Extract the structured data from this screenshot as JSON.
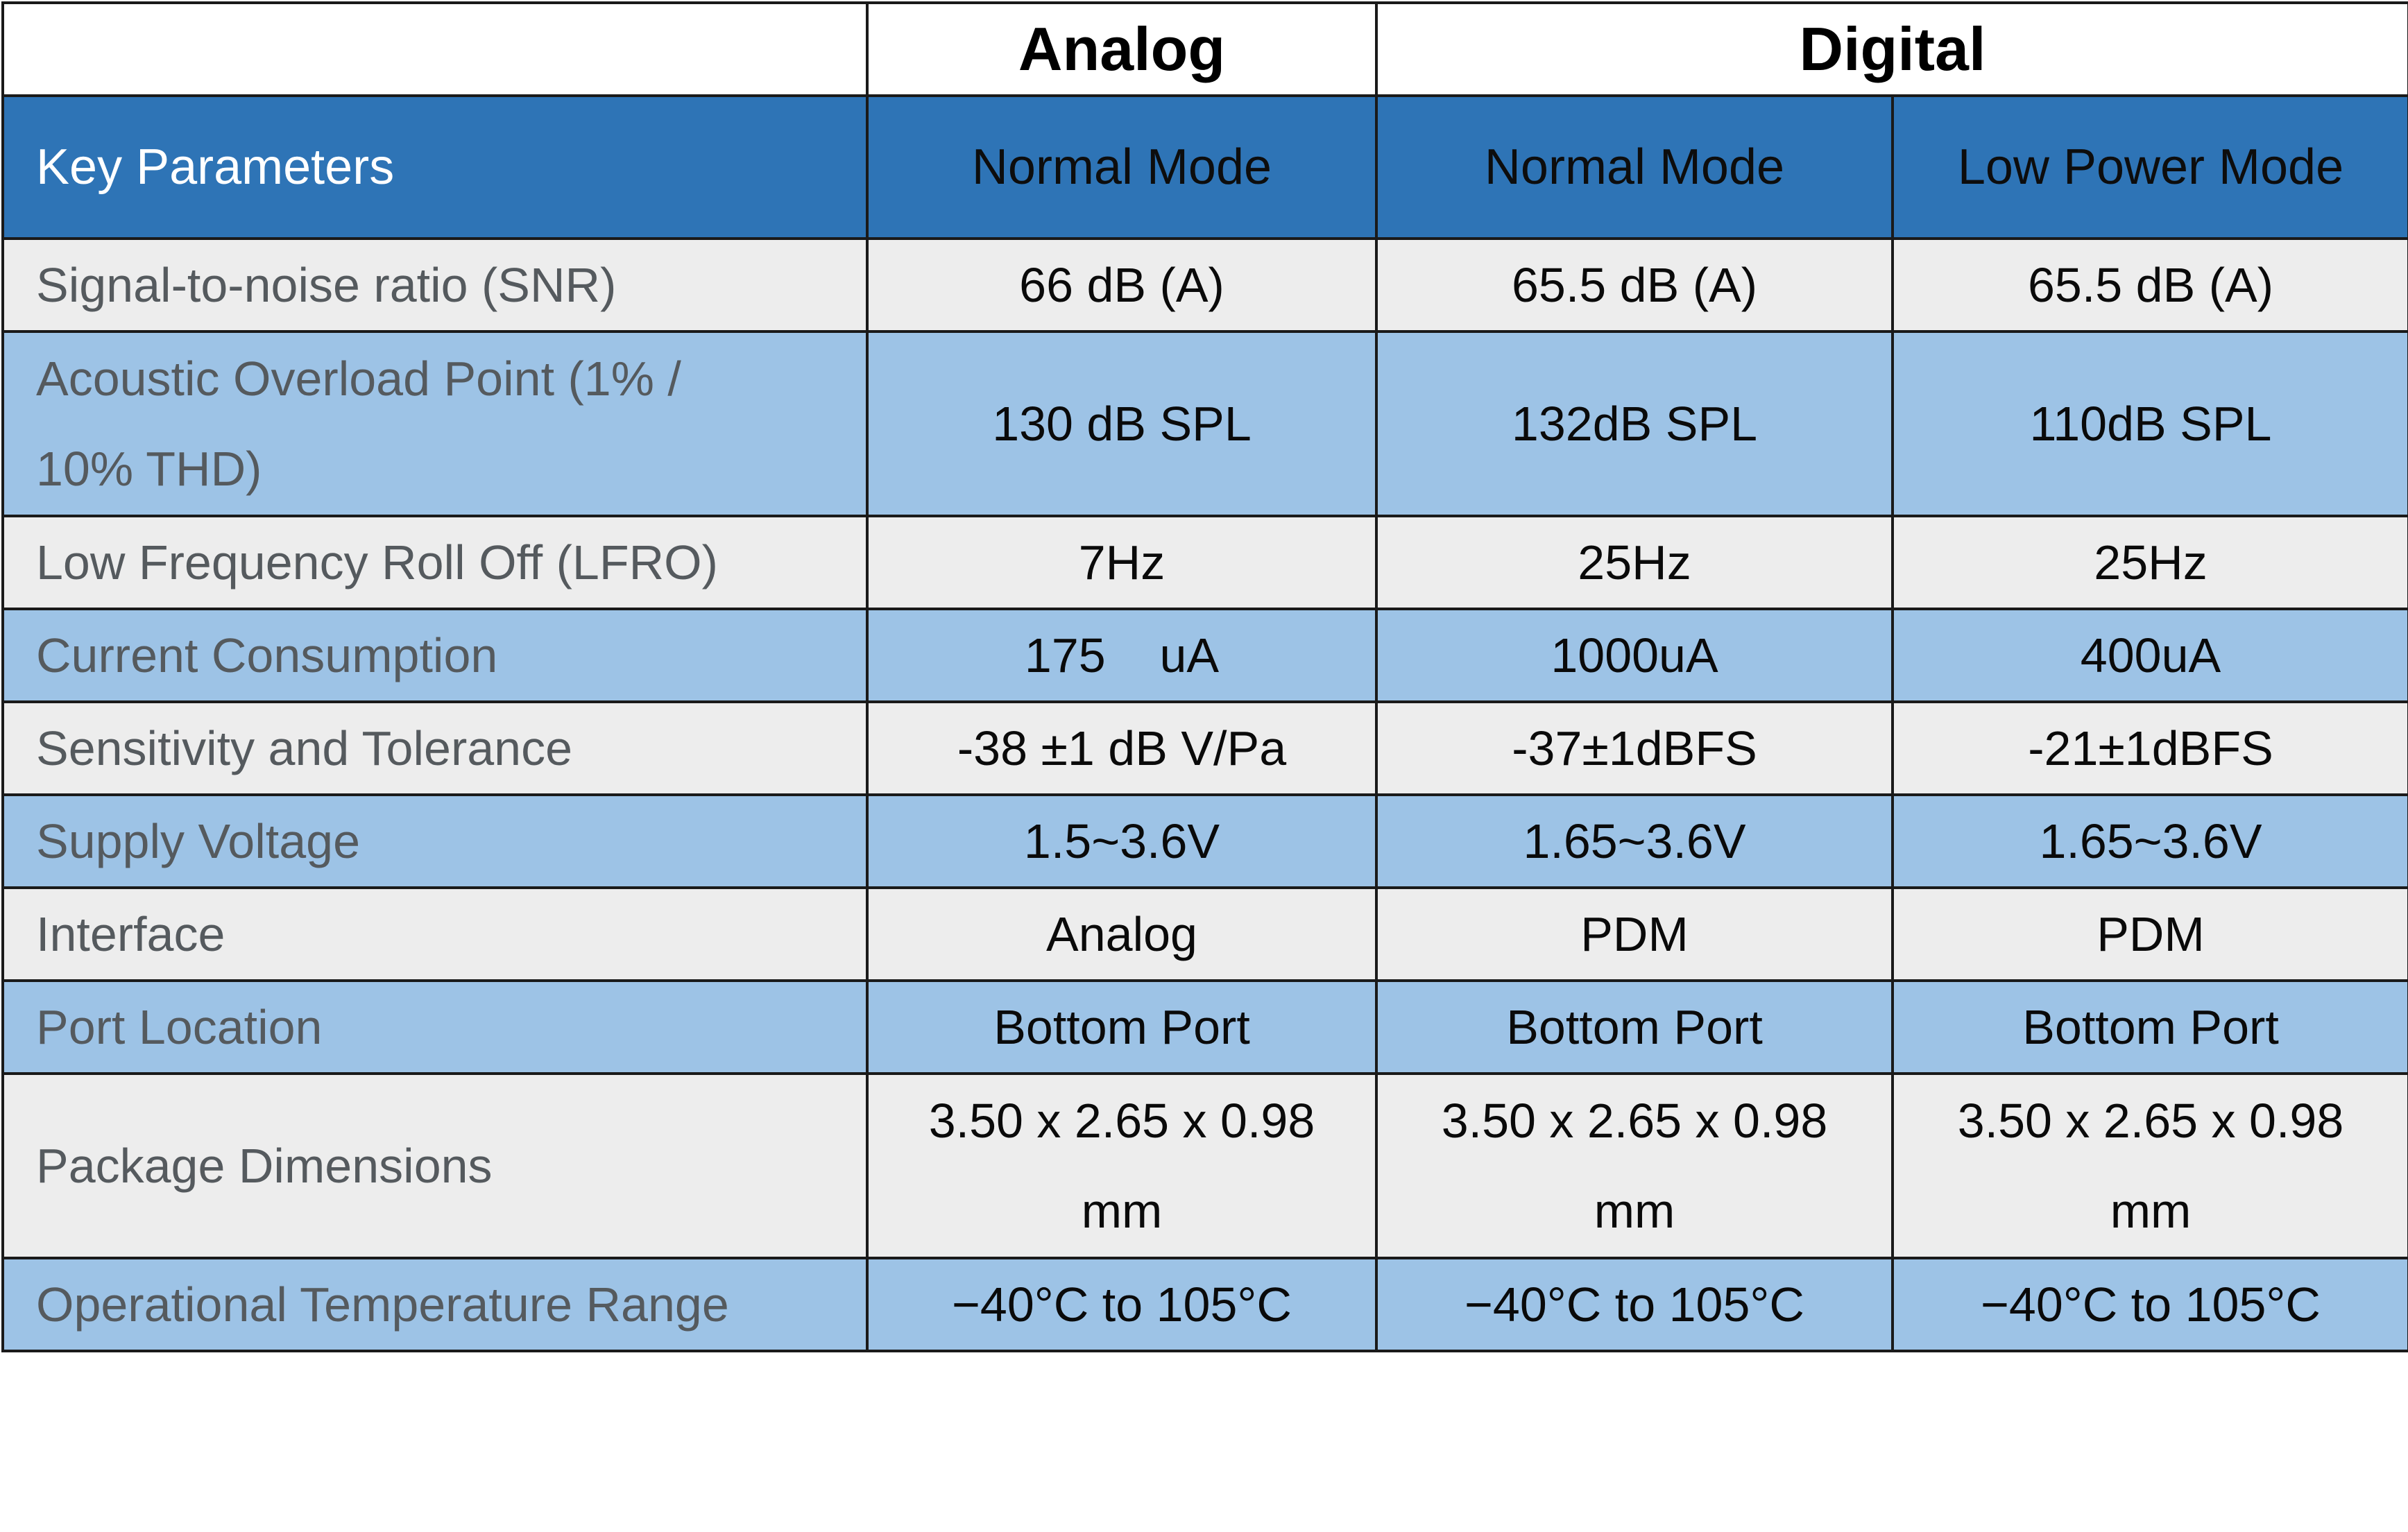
{
  "group_header": {
    "blank": "",
    "analog": "Analog",
    "digital": "Digital"
  },
  "column_header": {
    "key_parameters": "Key Parameters",
    "analog_normal": "Normal Mode",
    "digital_normal": "Normal Mode",
    "digital_low_power": "Low Power Mode"
  },
  "rows": [
    {
      "label": "Signal-to-noise ratio (SNR)",
      "analog_normal": "66 dB (A)",
      "digital_normal": "65.5 dB (A)",
      "digital_low_power": "65.5 dB (A)"
    },
    {
      "label": "Acoustic Overload Point (1% / 10% THD)",
      "analog_normal": "130 dB SPL",
      "digital_normal": "132dB SPL",
      "digital_low_power": "110dB SPL"
    },
    {
      "label": "Low Frequency Roll Off (LFRO)",
      "analog_normal": "7Hz",
      "digital_normal": "25Hz",
      "digital_low_power": "25Hz"
    },
    {
      "label": "Current Consumption",
      "analog_normal": "175    uA",
      "digital_normal": "1000uA",
      "digital_low_power": "400uA"
    },
    {
      "label": "Sensitivity and Tolerance",
      "analog_normal": "-38 ±1 dB V/Pa",
      "digital_normal": "-37±1dBFS",
      "digital_low_power": "-21±1dBFS"
    },
    {
      "label": "Supply Voltage",
      "analog_normal": "1.5~3.6V",
      "digital_normal": "1.65~3.6V",
      "digital_low_power": "1.65~3.6V"
    },
    {
      "label": "Interface",
      "analog_normal": "Analog",
      "digital_normal": "PDM",
      "digital_low_power": "PDM"
    },
    {
      "label": "Port Location",
      "analog_normal": "Bottom Port",
      "digital_normal": "Bottom Port",
      "digital_low_power": "Bottom Port"
    },
    {
      "label": "Package Dimensions",
      "analog_normal": "3.50 x 2.65 x 0.98 mm",
      "digital_normal": "3.50 x 2.65 x 0.98 mm",
      "digital_low_power": "3.50 x 2.65 x 0.98 mm"
    },
    {
      "label": "Operational Temperature Range",
      "analog_normal": "−40°C to 105°C",
      "digital_normal": "−40°C to 105°C",
      "digital_low_power": "−40°C to 105°C"
    }
  ],
  "colors": {
    "header_blue": "#2e74b6",
    "row_light_blue": "#9dc3e6",
    "row_light_gray": "#ededed",
    "label_text_gray": "#555a5e"
  }
}
